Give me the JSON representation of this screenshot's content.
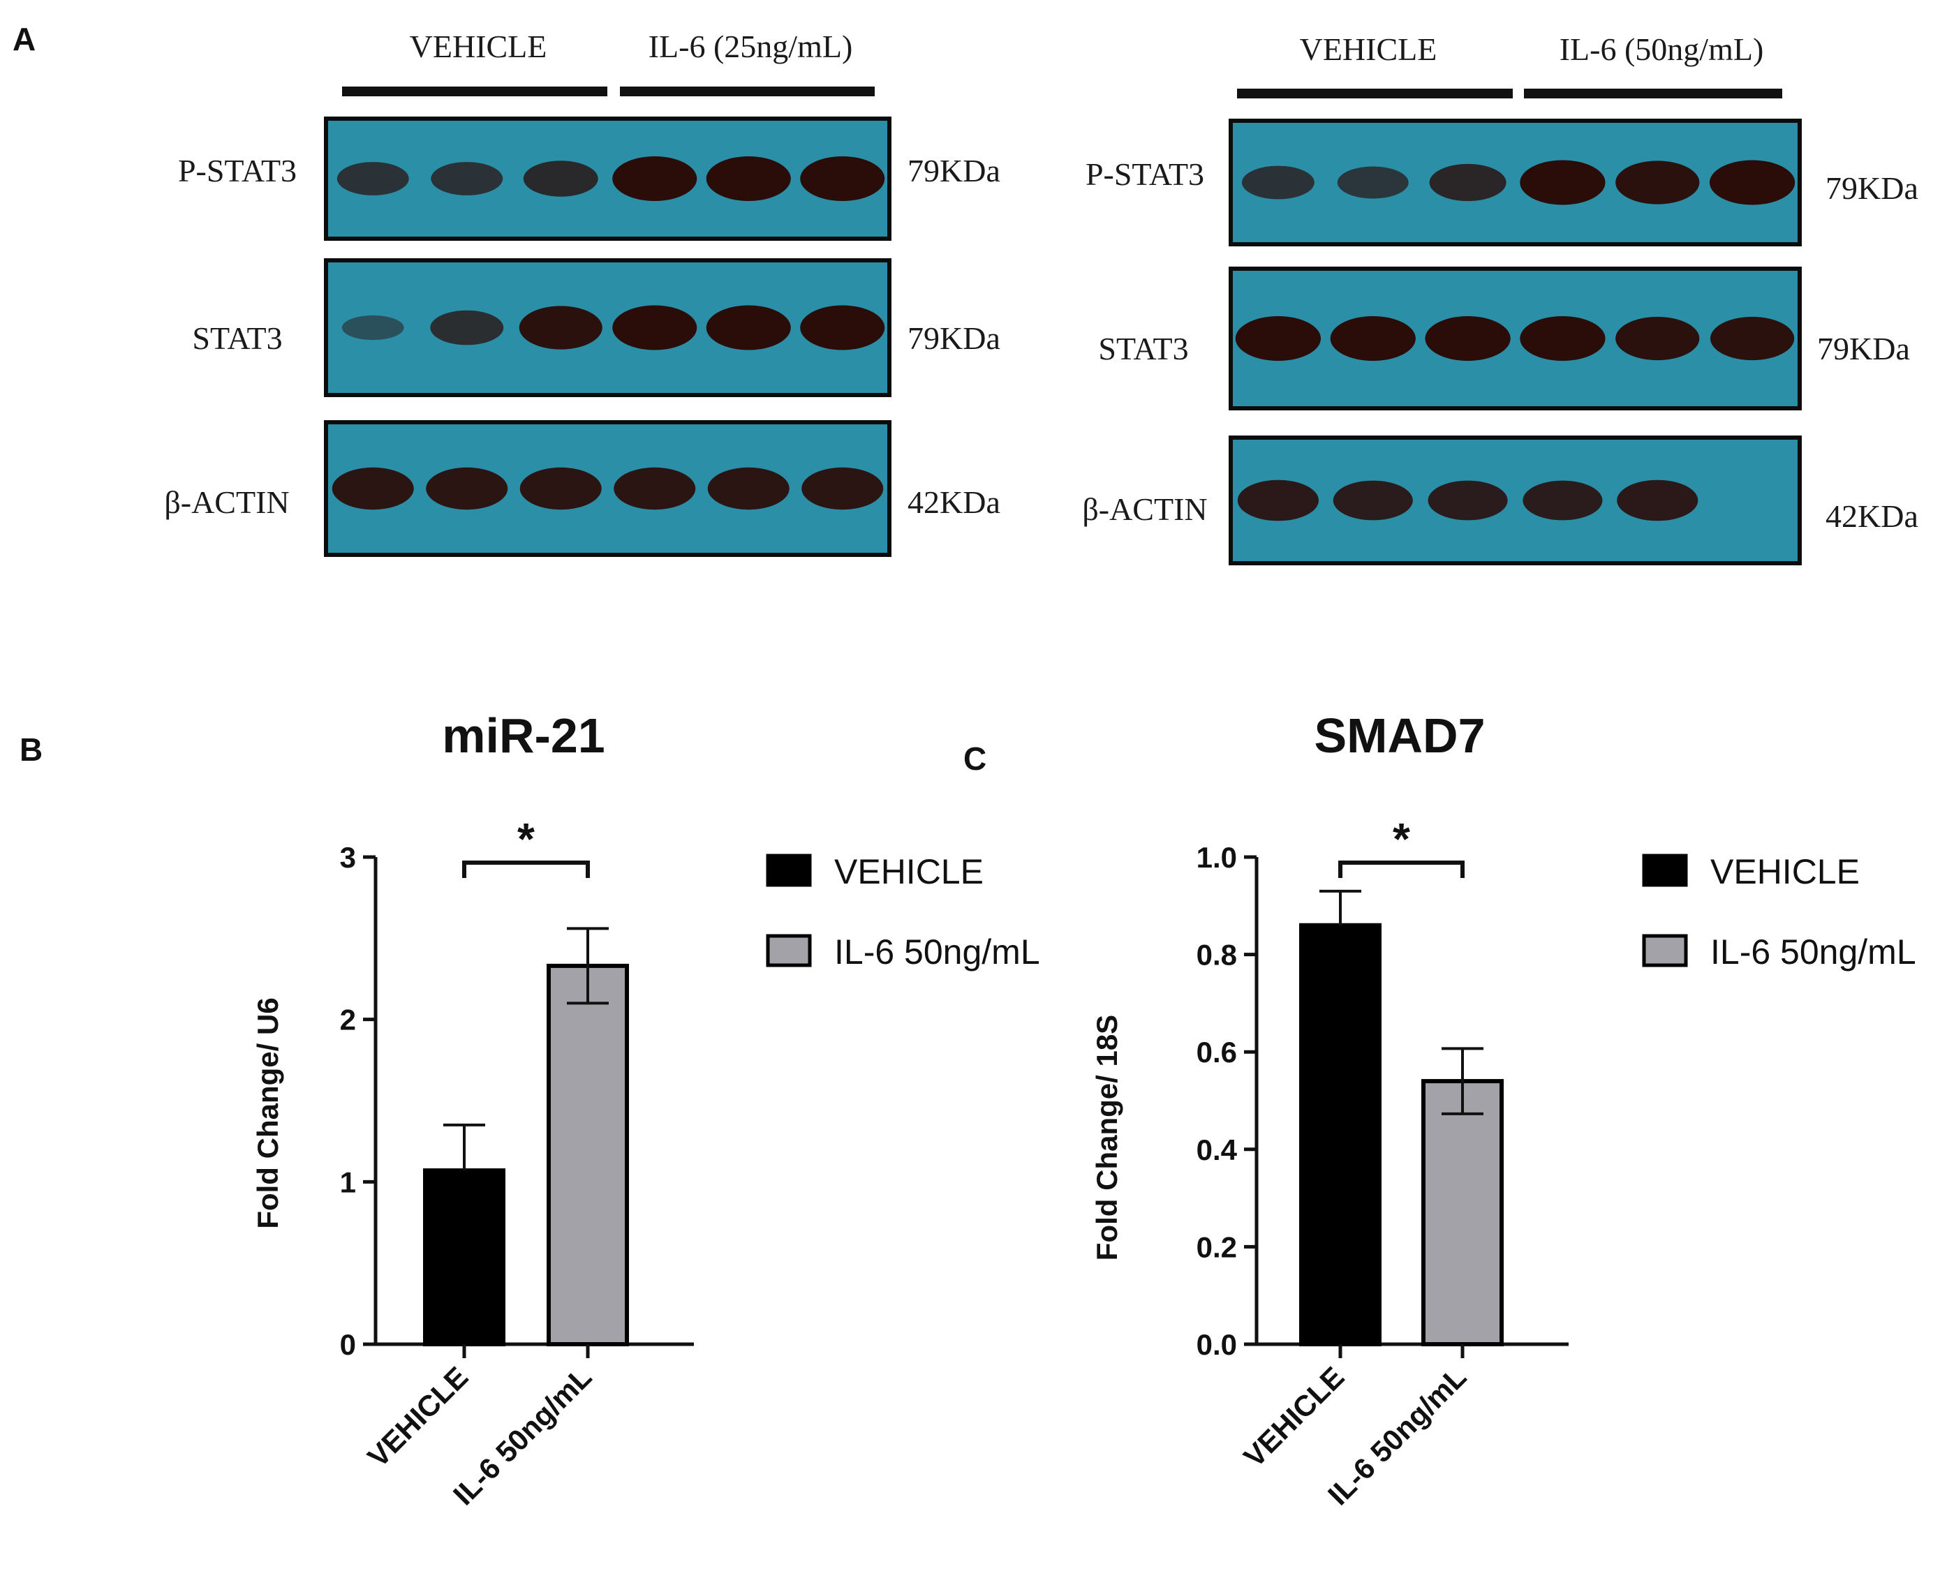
{
  "panel_letters": {
    "a": "A",
    "b": "B",
    "c": "C"
  },
  "western_blots": [
    {
      "group_left": "VEHICLE",
      "group_right": "IL-6 (25ng/mL)",
      "rows": [
        {
          "protein": "P-STAT3",
          "weight": "79KDa",
          "intensity": [
            0.55,
            0.55,
            0.65,
            1.0,
            1.0,
            1.0
          ]
        },
        {
          "protein": "STAT3",
          "weight": "79KDa",
          "intensity": [
            0.2,
            0.6,
            0.95,
            1.0,
            1.0,
            1.0
          ]
        },
        {
          "protein": "β-ACTIN",
          "weight": "42KDa",
          "intensity": [
            0.9,
            0.9,
            0.9,
            0.9,
            0.9,
            0.9
          ]
        }
      ]
    },
    {
      "group_left": "VEHICLE",
      "group_right": "IL-6 (50ng/mL)",
      "rows": [
        {
          "protein": "P-STAT3",
          "weight": "79KDa",
          "intensity": [
            0.55,
            0.5,
            0.7,
            1.0,
            0.95,
            1.0
          ]
        },
        {
          "protein": "STAT3",
          "weight": "79KDa",
          "intensity": [
            1.0,
            1.0,
            1.0,
            1.0,
            0.95,
            0.95
          ]
        },
        {
          "protein": "β-ACTIN",
          "weight": "42KDa",
          "intensity": [
            0.85,
            0.8,
            0.8,
            0.8,
            0.85,
            0.0
          ]
        }
      ]
    }
  ],
  "chart_data": [
    {
      "type": "bar",
      "title": "miR-21",
      "ylabel": "Fold Change/ U6",
      "ylim": [
        0,
        3
      ],
      "yticks": [
        "0",
        "1",
        "2",
        "3"
      ],
      "categories": [
        "VEHICLE",
        "IL-6 50ng/mL"
      ],
      "values": [
        1.07,
        2.33
      ],
      "errors": [
        0.28,
        0.23
      ],
      "colors": [
        "#000000",
        "#a3a2a8"
      ],
      "significance": "*",
      "legend": [
        "VEHICLE",
        "IL-6 50ng/mL"
      ]
    },
    {
      "type": "bar",
      "title": "SMAD7",
      "ylabel": "Fold Change/ 18S",
      "ylim": [
        0,
        1.0
      ],
      "yticks": [
        "0.0",
        "0.2",
        "0.4",
        "0.6",
        "0.8",
        "1.0"
      ],
      "categories": [
        "VEHICLE",
        "IL-6 50ng/mL"
      ],
      "values": [
        0.86,
        0.54
      ],
      "errors": [
        0.07,
        0.067
      ],
      "colors": [
        "#000000",
        "#a3a2a8"
      ],
      "significance": "*",
      "legend": [
        "VEHICLE",
        "IL-6 50ng/mL"
      ]
    }
  ]
}
